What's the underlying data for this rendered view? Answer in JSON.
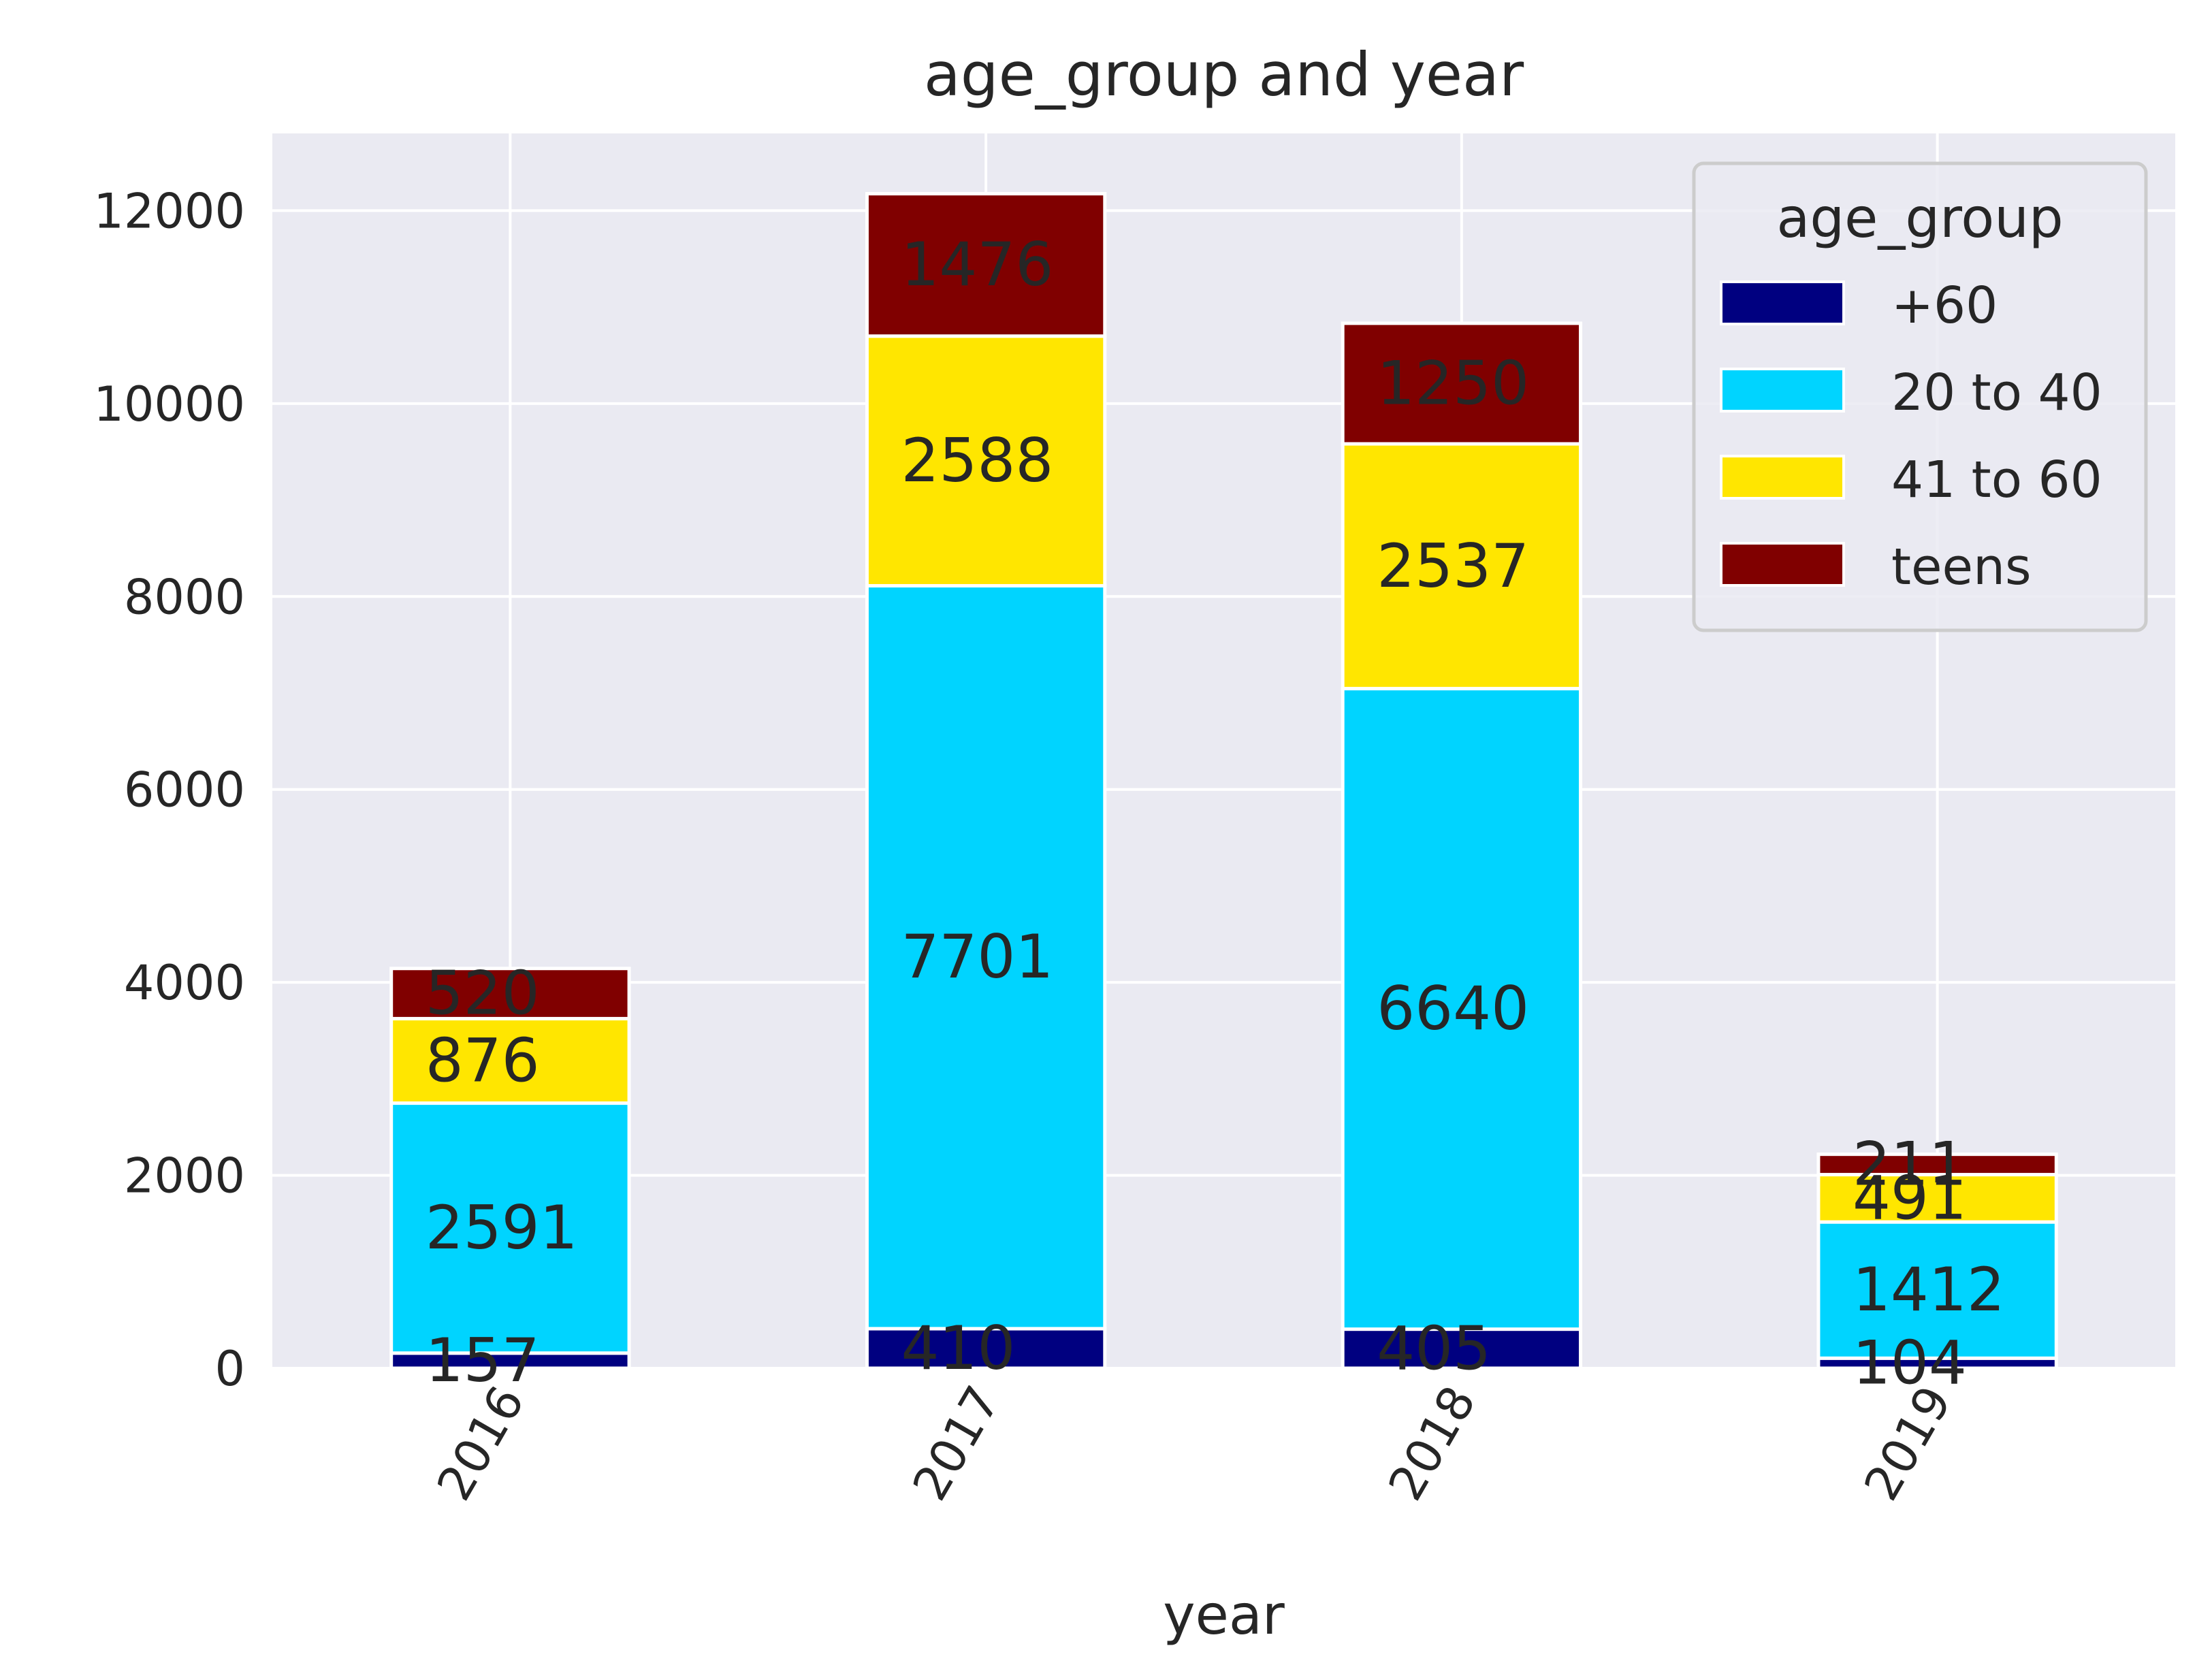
{
  "chart_data": {
    "type": "bar",
    "stacked": true,
    "title": "age_group and year",
    "xlabel": "year",
    "ylabel": "",
    "categories": [
      "2016",
      "2017",
      "2018",
      "2019"
    ],
    "ylim": [
      0,
      12800
    ],
    "yticks": [
      "0",
      "2000",
      "4000",
      "6000",
      "8000",
      "10000",
      "12000"
    ],
    "grid": true,
    "legend": {
      "title": "age_group",
      "placement": "top-right"
    },
    "series": [
      {
        "name": "+60",
        "color": "#000080",
        "values": [
          157,
          410,
          405,
          104
        ]
      },
      {
        "name": "20 to 40",
        "color": "#00d4ff",
        "values": [
          2591,
          7701,
          6640,
          1412
        ]
      },
      {
        "name": "41 to 60",
        "color": "#ffe600",
        "values": [
          876,
          2588,
          2537,
          491
        ]
      },
      {
        "name": "teens",
        "color": "#800000",
        "values": [
          520,
          1476,
          1250,
          211
        ]
      }
    ],
    "colors": {
      "plot_background": "#eaeaf2",
      "grid": "#ffffff",
      "text": "#262626"
    }
  }
}
